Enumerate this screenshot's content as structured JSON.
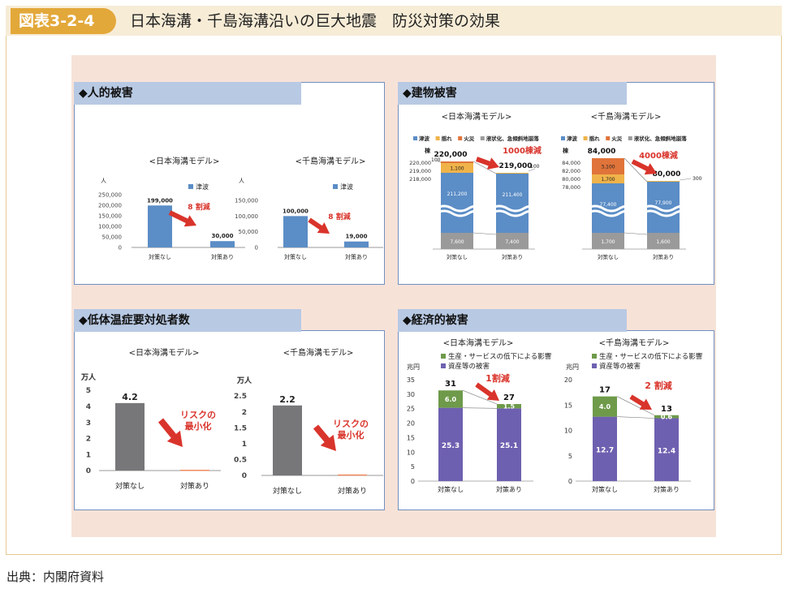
{
  "header": {
    "figure_number": "図表3-2-4",
    "title": "日本海溝・千島海溝沿いの巨大地震　防災対策の効果"
  },
  "source": "出典：内閣府資料",
  "panels": {
    "human": {
      "title": "◆人的被害"
    },
    "building": {
      "title": "◆建物被害"
    },
    "hypothermia": {
      "title": "◆低体温症要対処者数"
    },
    "economic": {
      "title": "◆経済的被害"
    }
  },
  "chart_data": [
    {
      "type": "bar",
      "title": "<日本海溝モデル>",
      "ylabel": "人",
      "legend": [
        "津波"
      ],
      "categories": [
        "対策なし",
        "対策あり"
      ],
      "values": [
        199000,
        30000
      ],
      "value_labels": [
        "199,000",
        "30,000"
      ],
      "ylim": [
        0,
        250000
      ],
      "yticks": [
        "0",
        "50,000",
        "100,000",
        "150,000",
        "200,000",
        "250,000"
      ],
      "annotation": "8 割減",
      "color": "#5b8dc6"
    },
    {
      "type": "bar",
      "title": "<千島海溝モデル>",
      "ylabel": "人",
      "legend": [
        "津波"
      ],
      "categories": [
        "対策なし",
        "対策あり"
      ],
      "values": [
        100000,
        19000
      ],
      "value_labels": [
        "100,000",
        "19,000"
      ],
      "ylim": [
        0,
        150000
      ],
      "yticks": [
        "0",
        "50,000",
        "100,000",
        "150,000"
      ],
      "annotation": "8 割減",
      "color": "#5b8dc6"
    },
    {
      "type": "bar",
      "stacked": true,
      "title": "<日本海溝モデル>",
      "ylabel": "棟",
      "legend": [
        "津波",
        "揺れ",
        "火災",
        "液状化、急傾斜地崩落"
      ],
      "categories": [
        "対策なし",
        "対策あり"
      ],
      "series": [
        {
          "name": "液状化、急傾斜地崩落",
          "values": [
            7600,
            7400
          ]
        },
        {
          "name": "津波",
          "values": [
            211200,
            211400
          ]
        },
        {
          "name": "揺れ",
          "values": [
            1100,
            100
          ]
        },
        {
          "name": "火災",
          "values": [
            100,
            0
          ]
        }
      ],
      "totals": [
        "220,000",
        "219,000"
      ],
      "segment_labels": [
        "7,600",
        "211,200",
        "1,100",
        "100",
        "7,400",
        "211,400",
        "100"
      ],
      "yticks": [
        "218,000",
        "219,000",
        "220,000"
      ],
      "annotation": "1000棟減"
    },
    {
      "type": "bar",
      "stacked": true,
      "title": "<千島海溝モデル>",
      "ylabel": "棟",
      "legend": [
        "津波",
        "揺れ",
        "火災",
        "液状化、急傾斜地崩落"
      ],
      "categories": [
        "対策なし",
        "対策あり"
      ],
      "series": [
        {
          "name": "液状化、急傾斜地崩落",
          "values": [
            1700,
            1600
          ]
        },
        {
          "name": "津波",
          "values": [
            77400,
            77900
          ]
        },
        {
          "name": "揺れ",
          "values": [
            1700,
            300
          ]
        },
        {
          "name": "火災",
          "values": [
            3100,
            0
          ]
        }
      ],
      "totals": [
        "84,000",
        "80,000"
      ],
      "segment_labels": [
        "1,700",
        "77,400",
        "1,700",
        "3,100",
        "1,600",
        "77,900",
        "300"
      ],
      "yticks": [
        "78,000",
        "80,000",
        "82,000",
        "84,000"
      ],
      "annotation": "4000棟減"
    },
    {
      "type": "bar",
      "title": "<日本海溝モデル>",
      "ylabel": "万人",
      "categories": [
        "対策なし",
        "対策あり"
      ],
      "values": [
        4.2,
        0.05
      ],
      "value_labels": [
        "4.2",
        ""
      ],
      "ylim": [
        0,
        5
      ],
      "yticks": [
        "0",
        "1",
        "2",
        "3",
        "4",
        "5"
      ],
      "annotation": "リスクの最小化"
    },
    {
      "type": "bar",
      "title": "<千島海溝モデル>",
      "ylabel": "万人",
      "categories": [
        "対策なし",
        "対策あり"
      ],
      "values": [
        2.2,
        0.03
      ],
      "value_labels": [
        "2.2",
        ""
      ],
      "ylim": [
        0,
        2.5
      ],
      "yticks": [
        "0",
        "0.5",
        "1",
        "1.5",
        "2",
        "2.5"
      ],
      "annotation": "リスクの最小化"
    },
    {
      "type": "bar",
      "stacked": true,
      "title": "<日本海溝モデル>",
      "ylabel": "兆円",
      "legend": [
        "生産・サービスの低下による影響",
        "資産等の被害"
      ],
      "categories": [
        "対策なし",
        "対策あり"
      ],
      "series": [
        {
          "name": "資産等の被害",
          "values": [
            25.3,
            25.1
          ]
        },
        {
          "name": "生産・サービスの低下による影響",
          "values": [
            6.0,
            1.5
          ]
        }
      ],
      "totals": [
        "31",
        "27"
      ],
      "ylim": [
        0,
        35
      ],
      "yticks": [
        "0",
        "5",
        "10",
        "15",
        "20",
        "25",
        "30",
        "35"
      ],
      "annotation": "1割減"
    },
    {
      "type": "bar",
      "stacked": true,
      "title": "<千島海溝モデル>",
      "ylabel": "兆円",
      "legend": [
        "生産・サービスの低下による影響",
        "資産等の被害"
      ],
      "categories": [
        "対策なし",
        "対策あり"
      ],
      "series": [
        {
          "name": "資産等の被害",
          "values": [
            12.7,
            12.4
          ]
        },
        {
          "name": "生産・サービスの低下による影響",
          "values": [
            4.0,
            0.6
          ]
        }
      ],
      "totals": [
        "17",
        "13"
      ],
      "ylim": [
        0,
        20
      ],
      "yticks": [
        "0",
        "5",
        "10",
        "15",
        "20"
      ],
      "annotation": "2 割減"
    }
  ]
}
